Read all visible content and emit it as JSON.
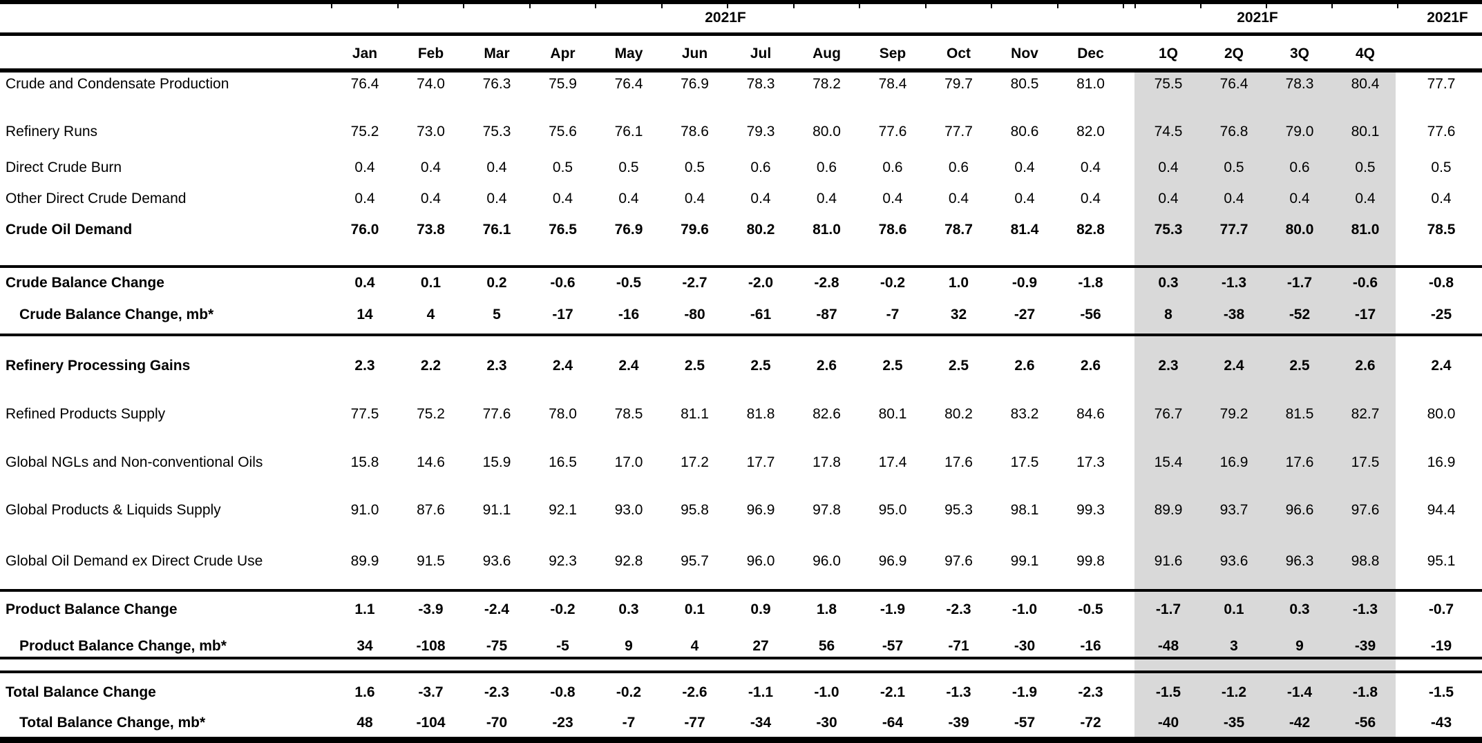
{
  "table": {
    "year_headers": {
      "months": "2021F",
      "quarters": "2021F",
      "annual": "2021F"
    },
    "month_columns": [
      "Jan",
      "Feb",
      "Mar",
      "Apr",
      "May",
      "Jun",
      "Jul",
      "Aug",
      "Sep",
      "Oct",
      "Nov",
      "Dec"
    ],
    "quarter_columns": [
      "1Q",
      "2Q",
      "3Q",
      "4Q"
    ],
    "rows": [
      {
        "label": "Crude and Condensate Production",
        "bold": false,
        "indent": false,
        "months": [
          "76.4",
          "74.0",
          "76.3",
          "75.9",
          "76.4",
          "76.9",
          "78.3",
          "78.2",
          "78.4",
          "79.7",
          "80.5",
          "81.0"
        ],
        "quarters": [
          "75.5",
          "76.4",
          "78.3",
          "80.4"
        ],
        "annual": "77.7"
      },
      {
        "label": "Refinery Runs",
        "bold": false,
        "indent": false,
        "months": [
          "75.2",
          "73.0",
          "75.3",
          "75.6",
          "76.1",
          "78.6",
          "79.3",
          "80.0",
          "77.6",
          "77.7",
          "80.6",
          "82.0"
        ],
        "quarters": [
          "74.5",
          "76.8",
          "79.0",
          "80.1"
        ],
        "annual": "77.6"
      },
      {
        "label": "Direct Crude Burn",
        "bold": false,
        "indent": false,
        "months": [
          "0.4",
          "0.4",
          "0.4",
          "0.5",
          "0.5",
          "0.5",
          "0.6",
          "0.6",
          "0.6",
          "0.6",
          "0.4",
          "0.4"
        ],
        "quarters": [
          "0.4",
          "0.5",
          "0.6",
          "0.5"
        ],
        "annual": "0.5"
      },
      {
        "label": "Other Direct Crude Demand",
        "bold": false,
        "indent": false,
        "months": [
          "0.4",
          "0.4",
          "0.4",
          "0.4",
          "0.4",
          "0.4",
          "0.4",
          "0.4",
          "0.4",
          "0.4",
          "0.4",
          "0.4"
        ],
        "quarters": [
          "0.4",
          "0.4",
          "0.4",
          "0.4"
        ],
        "annual": "0.4"
      },
      {
        "label": "Crude Oil Demand",
        "bold": true,
        "indent": false,
        "months": [
          "76.0",
          "73.8",
          "76.1",
          "76.5",
          "76.9",
          "79.6",
          "80.2",
          "81.0",
          "78.6",
          "78.7",
          "81.4",
          "82.8"
        ],
        "quarters": [
          "75.3",
          "77.7",
          "80.0",
          "81.0"
        ],
        "annual": "78.5"
      },
      {
        "label": "Crude Balance Change",
        "bold": true,
        "indent": false,
        "months": [
          "0.4",
          "0.1",
          "0.2",
          "-0.6",
          "-0.5",
          "-2.7",
          "-2.0",
          "-2.8",
          "-0.2",
          "1.0",
          "-0.9",
          "-1.8"
        ],
        "quarters": [
          "0.3",
          "-1.3",
          "-1.7",
          "-0.6"
        ],
        "annual": "-0.8"
      },
      {
        "label": "Crude Balance Change, mb*",
        "bold": true,
        "indent": true,
        "months": [
          "14",
          "4",
          "5",
          "-17",
          "-16",
          "-80",
          "-61",
          "-87",
          "-7",
          "32",
          "-27",
          "-56"
        ],
        "quarters": [
          "8",
          "-38",
          "-52",
          "-17"
        ],
        "annual": "-25"
      },
      {
        "label": "Refinery Processing Gains",
        "bold": true,
        "indent": false,
        "months": [
          "2.3",
          "2.2",
          "2.3",
          "2.4",
          "2.4",
          "2.5",
          "2.5",
          "2.6",
          "2.5",
          "2.5",
          "2.6",
          "2.6"
        ],
        "quarters": [
          "2.3",
          "2.4",
          "2.5",
          "2.6"
        ],
        "annual": "2.4"
      },
      {
        "label": "Refined Products Supply",
        "bold": false,
        "indent": false,
        "months": [
          "77.5",
          "75.2",
          "77.6",
          "78.0",
          "78.5",
          "81.1",
          "81.8",
          "82.6",
          "80.1",
          "80.2",
          "83.2",
          "84.6"
        ],
        "quarters": [
          "76.7",
          "79.2",
          "81.5",
          "82.7"
        ],
        "annual": "80.0"
      },
      {
        "label": "Global NGLs and Non-conventional Oils",
        "bold": false,
        "indent": false,
        "months": [
          "15.8",
          "14.6",
          "15.9",
          "16.5",
          "17.0",
          "17.2",
          "17.7",
          "17.8",
          "17.4",
          "17.6",
          "17.5",
          "17.3"
        ],
        "quarters": [
          "15.4",
          "16.9",
          "17.6",
          "17.5"
        ],
        "annual": "16.9"
      },
      {
        "label": "Global Products & Liquids Supply",
        "bold": false,
        "indent": false,
        "months": [
          "91.0",
          "87.6",
          "91.1",
          "92.1",
          "93.0",
          "95.8",
          "96.9",
          "97.8",
          "95.0",
          "95.3",
          "98.1",
          "99.3"
        ],
        "quarters": [
          "89.9",
          "93.7",
          "96.6",
          "97.6"
        ],
        "annual": "94.4"
      },
      {
        "label": "Global Oil Demand ex Direct Crude Use",
        "bold": false,
        "indent": false,
        "months": [
          "89.9",
          "91.5",
          "93.6",
          "92.3",
          "92.8",
          "95.7",
          "96.0",
          "96.0",
          "96.9",
          "97.6",
          "99.1",
          "99.8"
        ],
        "quarters": [
          "91.6",
          "93.6",
          "96.3",
          "98.8"
        ],
        "annual": "95.1"
      },
      {
        "label": "Product Balance Change",
        "bold": true,
        "indent": false,
        "months": [
          "1.1",
          "-3.9",
          "-2.4",
          "-0.2",
          "0.3",
          "0.1",
          "0.9",
          "1.8",
          "-1.9",
          "-2.3",
          "-1.0",
          "-0.5"
        ],
        "quarters": [
          "-1.7",
          "0.1",
          "0.3",
          "-1.3"
        ],
        "annual": "-0.7"
      },
      {
        "label": "Product Balance Change, mb*",
        "bold": true,
        "indent": true,
        "months": [
          "34",
          "-108",
          "-75",
          "-5",
          "9",
          "4",
          "27",
          "56",
          "-57",
          "-71",
          "-30",
          "-16"
        ],
        "quarters": [
          "-48",
          "3",
          "9",
          "-39"
        ],
        "annual": "-19"
      },
      {
        "label": "Total Balance Change",
        "bold": true,
        "indent": false,
        "months": [
          "1.6",
          "-3.7",
          "-2.3",
          "-0.8",
          "-0.2",
          "-2.6",
          "-1.1",
          "-1.0",
          "-2.1",
          "-1.3",
          "-1.9",
          "-2.3"
        ],
        "quarters": [
          "-1.5",
          "-1.2",
          "-1.4",
          "-1.8"
        ],
        "annual": "-1.5"
      },
      {
        "label": "Total Balance Change, mb*",
        "bold": true,
        "indent": true,
        "months": [
          "48",
          "-104",
          "-70",
          "-23",
          "-7",
          "-77",
          "-34",
          "-30",
          "-64",
          "-39",
          "-57",
          "-72"
        ],
        "quarters": [
          "-40",
          "-35",
          "-42",
          "-56"
        ],
        "annual": "-43"
      }
    ]
  },
  "colors": {
    "quarter_band": "#d9d9d9",
    "line": "#000000",
    "text": "#000000",
    "background": "#ffffff"
  }
}
